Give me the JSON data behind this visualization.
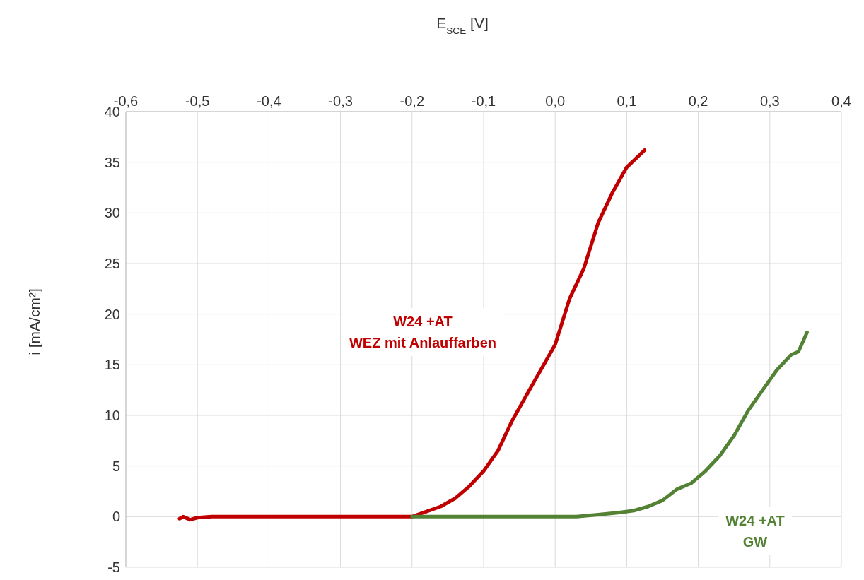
{
  "chart_data": {
    "type": "line",
    "xlabel": "E$_{SCE}$  [V]",
    "ylabel": "i  [mA/cm²]",
    "xlim": [
      -0.6,
      0.4
    ],
    "xticks": [
      {
        "value": -0.6,
        "label": "-0,6"
      },
      {
        "value": -0.5,
        "label": "-0,5"
      },
      {
        "value": -0.4,
        "label": "-0,4"
      },
      {
        "value": -0.3,
        "label": "-0,3"
      },
      {
        "value": -0.2,
        "label": "-0,2"
      },
      {
        "value": -0.1,
        "label": "-0,1"
      },
      {
        "value": 0,
        "label": "0,0"
      },
      {
        "value": 0.1,
        "label": "0,1"
      },
      {
        "value": 0.2,
        "label": "0,2"
      },
      {
        "value": 0.3,
        "label": "0,3"
      },
      {
        "value": 0.4,
        "label": "0,4"
      }
    ],
    "ylim": [
      -5,
      40
    ],
    "yticks": [
      -5,
      0,
      5,
      10,
      15,
      20,
      25,
      30,
      35,
      40
    ],
    "grid": true,
    "marker": "none",
    "line_style": "solid",
    "series": [
      {
        "name": "W24 +AT\nWEZ mit Anlauffarben",
        "color": "#c00000",
        "x": [
          -0.525,
          -0.52,
          -0.51,
          -0.5,
          -0.48,
          -0.4,
          -0.3,
          -0.2,
          -0.18,
          -0.16,
          -0.14,
          -0.12,
          -0.1,
          -0.08,
          -0.06,
          -0.04,
          -0.02,
          0,
          0.02,
          0.04,
          0.06,
          0.08,
          0.1,
          0.125
        ],
        "values": [
          -0.2,
          0,
          -0.3,
          -0.1,
          0,
          0,
          0,
          0,
          0.5,
          1,
          1.8,
          3,
          4.5,
          6.5,
          9.5,
          12,
          14.5,
          17,
          21.5,
          24.5,
          29,
          32,
          34.5,
          36.2
        ]
      },
      {
        "name": "W24 +AT\nGW",
        "color": "#548235",
        "x": [
          -0.2,
          0,
          0.03,
          0.06,
          0.09,
          0.11,
          0.13,
          0.15,
          0.17,
          0.19,
          0.21,
          0.23,
          0.25,
          0.27,
          0.29,
          0.31,
          0.33,
          0.34,
          0.352
        ],
        "values": [
          0,
          0,
          0,
          0.2,
          0.4,
          0.6,
          1,
          1.6,
          2.7,
          3.3,
          4.5,
          6,
          8,
          10.5,
          12.5,
          14.5,
          16,
          16.3,
          18.2
        ]
      }
    ]
  }
}
